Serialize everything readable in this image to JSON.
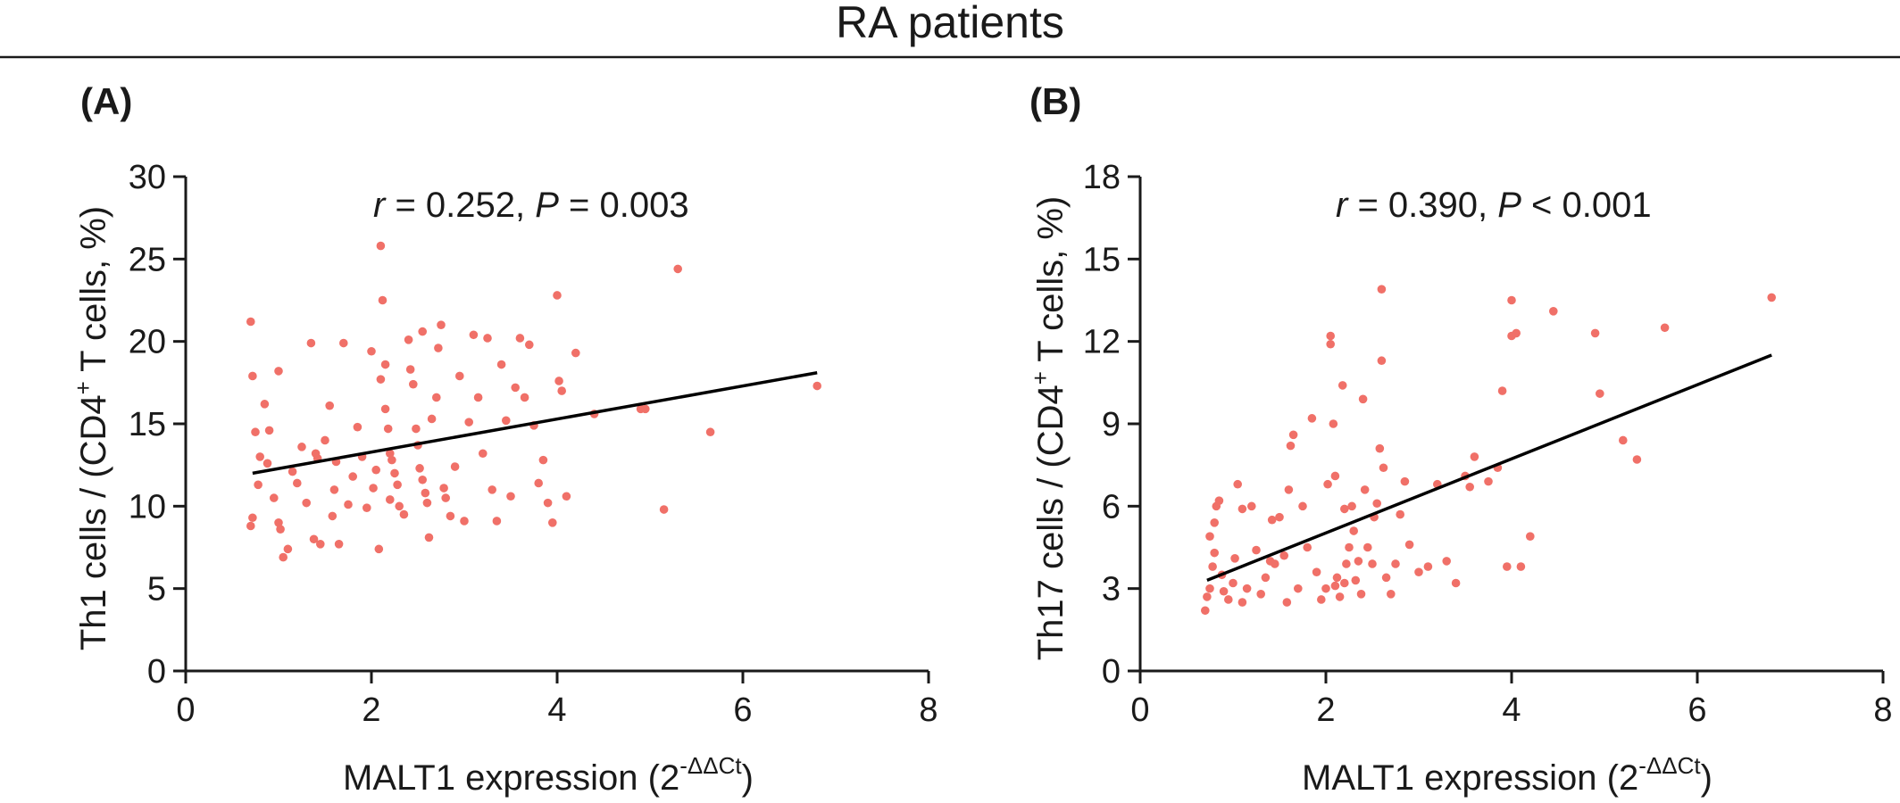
{
  "figure": {
    "title": "RA patients"
  },
  "chart_data": [
    {
      "type": "scatter",
      "panel_label": "(A)",
      "annotation": {
        "r_symbol": "r",
        "r_text": " = 0.252, ",
        "p_symbol": "P",
        "p_text": " = 0.003"
      },
      "xlabel": "MALT1 expression (2",
      "xlabel_sup": "-ΔΔCt",
      "xlabel_tail": ")",
      "ylabel": "Th1 cells / (CD4",
      "ylabel_sup": "+",
      "ylabel_tail": " T cells, %)",
      "xlim": [
        0,
        8
      ],
      "ylim": [
        0,
        30
      ],
      "xticks": [
        0,
        2,
        4,
        6,
        8
      ],
      "yticks": [
        0,
        5,
        10,
        15,
        20,
        25,
        30
      ],
      "grid": false,
      "colors": {
        "points": "#f07068",
        "fit": "#000000"
      },
      "fit_line": {
        "x": [
          0.72,
          6.8
        ],
        "y": [
          12.0,
          18.1
        ]
      },
      "points": [
        [
          0.7,
          21.2
        ],
        [
          0.72,
          17.9
        ],
        [
          0.75,
          14.5
        ],
        [
          0.8,
          13.0
        ],
        [
          0.78,
          11.3
        ],
        [
          0.72,
          9.3
        ],
        [
          0.7,
          8.8
        ],
        [
          0.85,
          16.2
        ],
        [
          0.9,
          14.6
        ],
        [
          0.88,
          12.6
        ],
        [
          0.95,
          10.5
        ],
        [
          1.0,
          18.2
        ],
        [
          1.02,
          8.6
        ],
        [
          1.05,
          6.9
        ],
        [
          1.1,
          7.4
        ],
        [
          1.0,
          9.0
        ],
        [
          1.15,
          12.1
        ],
        [
          1.2,
          11.4
        ],
        [
          1.25,
          13.6
        ],
        [
          1.3,
          10.2
        ],
        [
          1.35,
          19.9
        ],
        [
          1.4,
          13.2
        ],
        [
          1.42,
          12.9
        ],
        [
          1.38,
          8.0
        ],
        [
          1.45,
          7.7
        ],
        [
          1.5,
          14.0
        ],
        [
          1.55,
          16.1
        ],
        [
          1.6,
          11.0
        ],
        [
          1.62,
          12.7
        ],
        [
          1.58,
          9.4
        ],
        [
          1.65,
          7.7
        ],
        [
          1.7,
          19.9
        ],
        [
          1.75,
          10.1
        ],
        [
          1.8,
          11.8
        ],
        [
          1.85,
          14.8
        ],
        [
          1.9,
          13.0
        ],
        [
          1.95,
          9.9
        ],
        [
          2.0,
          19.4
        ],
        [
          2.02,
          11.1
        ],
        [
          2.05,
          12.2
        ],
        [
          2.08,
          7.4
        ],
        [
          2.1,
          25.8
        ],
        [
          2.12,
          22.5
        ],
        [
          2.15,
          18.6
        ],
        [
          2.1,
          17.7
        ],
        [
          2.15,
          15.9
        ],
        [
          2.18,
          14.7
        ],
        [
          2.2,
          13.2
        ],
        [
          2.22,
          12.8
        ],
        [
          2.25,
          12.0
        ],
        [
          2.28,
          11.3
        ],
        [
          2.2,
          10.4
        ],
        [
          2.3,
          10.0
        ],
        [
          2.35,
          9.5
        ],
        [
          2.4,
          20.1
        ],
        [
          2.42,
          18.3
        ],
        [
          2.45,
          17.4
        ],
        [
          2.48,
          14.7
        ],
        [
          2.5,
          13.7
        ],
        [
          2.52,
          12.3
        ],
        [
          2.55,
          11.6
        ],
        [
          2.58,
          10.8
        ],
        [
          2.6,
          10.2
        ],
        [
          2.62,
          8.1
        ],
        [
          2.55,
          20.6
        ],
        [
          2.65,
          15.3
        ],
        [
          2.7,
          16.6
        ],
        [
          2.72,
          19.6
        ],
        [
          2.75,
          21.0
        ],
        [
          2.78,
          11.1
        ],
        [
          2.8,
          10.5
        ],
        [
          2.85,
          9.4
        ],
        [
          2.9,
          12.4
        ],
        [
          2.95,
          17.9
        ],
        [
          3.0,
          9.1
        ],
        [
          3.05,
          15.1
        ],
        [
          3.1,
          20.4
        ],
        [
          3.15,
          16.6
        ],
        [
          3.2,
          13.2
        ],
        [
          3.25,
          20.2
        ],
        [
          3.3,
          11.0
        ],
        [
          3.35,
          9.1
        ],
        [
          3.4,
          18.6
        ],
        [
          3.45,
          15.2
        ],
        [
          3.5,
          10.6
        ],
        [
          3.55,
          17.2
        ],
        [
          3.6,
          20.2
        ],
        [
          3.65,
          16.6
        ],
        [
          3.7,
          19.8
        ],
        [
          3.75,
          14.9
        ],
        [
          3.8,
          11.4
        ],
        [
          3.85,
          12.8
        ],
        [
          3.9,
          10.2
        ],
        [
          3.95,
          9.0
        ],
        [
          4.0,
          22.8
        ],
        [
          4.02,
          17.6
        ],
        [
          4.05,
          17.0
        ],
        [
          4.1,
          10.6
        ],
        [
          4.2,
          19.3
        ],
        [
          4.4,
          15.6
        ],
        [
          4.9,
          15.9
        ],
        [
          4.95,
          15.9
        ],
        [
          5.15,
          9.8
        ],
        [
          5.3,
          24.4
        ],
        [
          5.65,
          14.5
        ],
        [
          6.8,
          17.3
        ]
      ]
    },
    {
      "type": "scatter",
      "panel_label": "(B)",
      "annotation": {
        "r_symbol": "r",
        "r_text": " = 0.390, ",
        "p_symbol": "P",
        "p_text": " < 0.001"
      },
      "xlabel": "MALT1 expression (2",
      "xlabel_sup": "-ΔΔCt",
      "xlabel_tail": ")",
      "ylabel": "Th17 cells / (CD4",
      "ylabel_sup": "+",
      "ylabel_tail": " T cells, %)",
      "xlim": [
        0,
        8
      ],
      "ylim": [
        0,
        18
      ],
      "xticks": [
        0,
        2,
        4,
        6,
        8
      ],
      "yticks": [
        0,
        3,
        6,
        9,
        12,
        15,
        18
      ],
      "grid": false,
      "colors": {
        "points": "#f07068",
        "fit": "#000000"
      },
      "fit_line": {
        "x": [
          0.72,
          6.8
        ],
        "y": [
          3.3,
          11.5
        ]
      },
      "points": [
        [
          0.7,
          2.2
        ],
        [
          0.72,
          2.7
        ],
        [
          0.75,
          3.0
        ],
        [
          0.78,
          3.8
        ],
        [
          0.8,
          4.3
        ],
        [
          0.75,
          4.9
        ],
        [
          0.8,
          5.4
        ],
        [
          0.82,
          6.0
        ],
        [
          0.85,
          6.2
        ],
        [
          0.88,
          3.5
        ],
        [
          0.9,
          2.9
        ],
        [
          0.95,
          2.6
        ],
        [
          1.0,
          3.2
        ],
        [
          1.02,
          4.1
        ],
        [
          1.05,
          6.8
        ],
        [
          1.1,
          5.9
        ],
        [
          1.1,
          2.5
        ],
        [
          1.15,
          3.0
        ],
        [
          1.2,
          6.0
        ],
        [
          1.25,
          4.4
        ],
        [
          1.3,
          2.8
        ],
        [
          1.35,
          3.4
        ],
        [
          1.4,
          4.0
        ],
        [
          1.42,
          5.5
        ],
        [
          1.45,
          3.9
        ],
        [
          1.5,
          5.6
        ],
        [
          1.55,
          4.2
        ],
        [
          1.58,
          2.5
        ],
        [
          1.6,
          6.6
        ],
        [
          1.62,
          8.2
        ],
        [
          1.65,
          8.6
        ],
        [
          1.7,
          3.0
        ],
        [
          1.75,
          6.0
        ],
        [
          1.8,
          4.5
        ],
        [
          1.85,
          9.2
        ],
        [
          1.9,
          3.6
        ],
        [
          1.95,
          2.6
        ],
        [
          2.0,
          3.0
        ],
        [
          2.02,
          6.8
        ],
        [
          2.05,
          12.2
        ],
        [
          2.05,
          11.9
        ],
        [
          2.08,
          9.0
        ],
        [
          2.1,
          7.1
        ],
        [
          2.1,
          3.1
        ],
        [
          2.12,
          3.4
        ],
        [
          2.15,
          2.7
        ],
        [
          2.18,
          10.4
        ],
        [
          2.2,
          5.9
        ],
        [
          2.2,
          3.2
        ],
        [
          2.22,
          3.9
        ],
        [
          2.25,
          4.5
        ],
        [
          2.28,
          6.0
        ],
        [
          2.3,
          5.1
        ],
        [
          2.32,
          3.3
        ],
        [
          2.35,
          4.0
        ],
        [
          2.38,
          2.8
        ],
        [
          2.4,
          9.9
        ],
        [
          2.42,
          6.6
        ],
        [
          2.45,
          4.5
        ],
        [
          2.5,
          3.9
        ],
        [
          2.52,
          5.6
        ],
        [
          2.55,
          6.1
        ],
        [
          2.58,
          8.1
        ],
        [
          2.6,
          13.9
        ],
        [
          2.6,
          11.3
        ],
        [
          2.62,
          7.4
        ],
        [
          2.65,
          3.4
        ],
        [
          2.7,
          2.8
        ],
        [
          2.75,
          3.9
        ],
        [
          2.8,
          5.7
        ],
        [
          2.85,
          6.9
        ],
        [
          2.9,
          4.6
        ],
        [
          3.0,
          3.6
        ],
        [
          3.1,
          3.8
        ],
        [
          3.2,
          6.8
        ],
        [
          3.3,
          4.0
        ],
        [
          3.4,
          3.2
        ],
        [
          3.5,
          7.1
        ],
        [
          3.55,
          6.7
        ],
        [
          3.6,
          7.8
        ],
        [
          3.75,
          6.9
        ],
        [
          3.85,
          7.4
        ],
        [
          3.9,
          10.2
        ],
        [
          3.95,
          3.8
        ],
        [
          4.0,
          12.2
        ],
        [
          4.0,
          13.5
        ],
        [
          4.05,
          12.3
        ],
        [
          4.1,
          3.8
        ],
        [
          4.2,
          4.9
        ],
        [
          4.45,
          13.1
        ],
        [
          4.9,
          12.3
        ],
        [
          4.95,
          10.1
        ],
        [
          5.2,
          8.4
        ],
        [
          5.35,
          7.7
        ],
        [
          5.65,
          12.5
        ],
        [
          6.8,
          13.6
        ]
      ]
    }
  ]
}
